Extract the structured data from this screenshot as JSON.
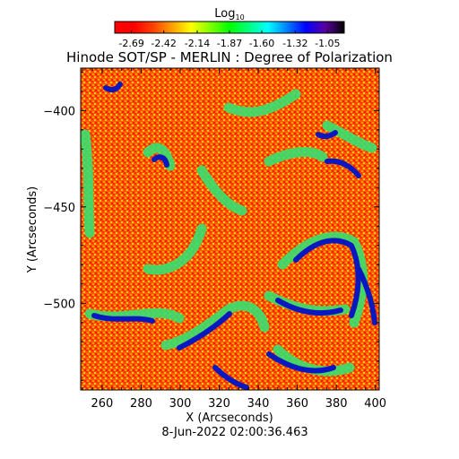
{
  "chart_data": {
    "type": "heatmap",
    "title": "Hinode SOT/SP - MERLIN : Degree of Polarization",
    "xlabel": "X (Arcseconds)",
    "ylabel": "Y (Arcseconds)",
    "xlim": [
      249,
      402
    ],
    "ylim": [
      -545,
      -378
    ],
    "x_ticks": [
      260,
      280,
      300,
      320,
      340,
      360,
      380,
      400
    ],
    "y_ticks": [
      -400,
      -450,
      -500
    ],
    "colorbar": {
      "label_base": "Log",
      "label_sub": "10",
      "range": [
        -2.83,
        -0.91
      ],
      "ticks": [
        "-2.69",
        "-2.42",
        "-2.14",
        "-1.87",
        "-1.60",
        "-1.32",
        "-1.05"
      ],
      "colormap": [
        "#000000",
        "#5a00a0",
        "#0000ff",
        "#0080ff",
        "#00ffff",
        "#00ff80",
        "#00ff00",
        "#80ff00",
        "#ffff00",
        "#ffa000",
        "#ff4000",
        "#ff0000",
        "#ff0000"
      ]
    },
    "timestamp": "8-Jun-2022 02:00:36.463",
    "background_log_value": -2.55,
    "regions": [
      {
        "name": "low-polarization-background",
        "color": "#ff4000"
      },
      {
        "name": "high-polarization-network",
        "color": "#0000cc"
      }
    ]
  }
}
